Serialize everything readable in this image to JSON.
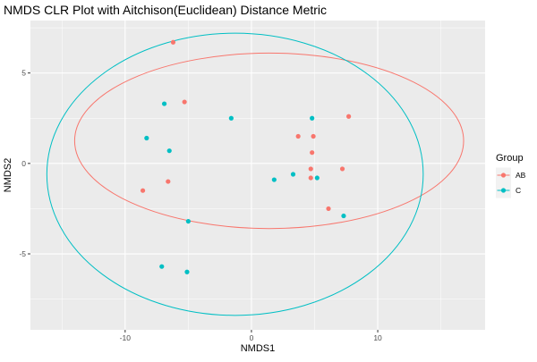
{
  "chart_data": {
    "type": "scatter",
    "title": "NMDS CLR Plot with Aitchison(Euclidean) Distance Metric",
    "xlabel": "NMDS1",
    "ylabel": "NMDS2",
    "xlim": [
      -17.5,
      18.5
    ],
    "ylim": [
      -9.2,
      7.9
    ],
    "x_ticks": [
      -10,
      0,
      10
    ],
    "x_tick_labels": [
      "-10",
      "0",
      "10"
    ],
    "y_ticks": [
      -5,
      0,
      5
    ],
    "y_tick_labels": [
      "-5",
      "0",
      "5"
    ],
    "grid": true,
    "legend": {
      "title": "Group",
      "placement": "right"
    },
    "series": [
      {
        "name": "AB",
        "color": "#F8766D",
        "x": [
          -6.2,
          -5.3,
          3.7,
          4.9,
          4.8,
          7.7,
          4.7,
          7.2,
          4.7,
          -8.6,
          -6.6,
          6.1
        ],
        "y": [
          6.7,
          3.4,
          1.5,
          1.5,
          0.6,
          2.6,
          -0.3,
          -0.3,
          -0.8,
          -1.5,
          -1.0,
          -2.5
        ],
        "ellipse": {
          "cx": 1.4,
          "cy": 1.25,
          "rx": 15.4,
          "ry": 4.85
        }
      },
      {
        "name": "C",
        "color": "#00BFC4",
        "x": [
          -6.9,
          -1.6,
          4.8,
          -8.3,
          -6.5,
          3.3,
          1.8,
          5.2,
          7.3,
          -5.0,
          -7.1,
          -5.1
        ],
        "y": [
          3.3,
          2.5,
          2.5,
          1.4,
          0.7,
          -0.6,
          -0.9,
          -0.8,
          -2.9,
          -3.2,
          -5.7,
          -6.0
        ],
        "ellipse": {
          "cx": -1.3,
          "cy": -0.6,
          "rx": 14.9,
          "ry": 7.8
        }
      }
    ]
  }
}
